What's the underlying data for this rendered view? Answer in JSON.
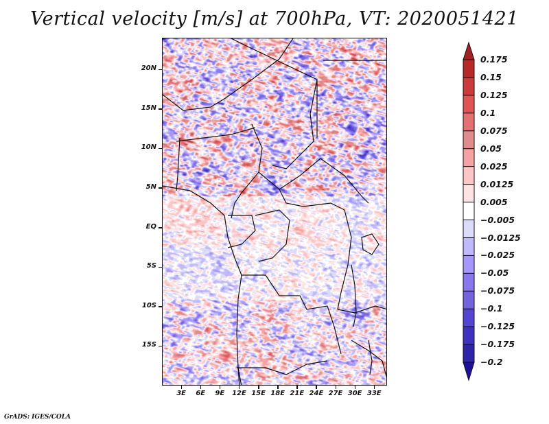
{
  "title": "Vertical velocity [m/s] at 700hPa, VT: 2020051421",
  "credit": "GrADS: IGES/COLA",
  "map": {
    "variable": "Vertical velocity",
    "units": "m/s",
    "level": "700hPa",
    "valid_time": "2020051421",
    "region": "Central Africa",
    "lon_range": [
      0,
      35
    ],
    "lat_range": [
      -20,
      24
    ],
    "y_axis_labels": [
      "20N",
      "15N",
      "10N",
      "5N",
      "EQ",
      "5S",
      "10S",
      "15S"
    ],
    "y_axis_values": [
      20,
      15,
      10,
      5,
      0,
      -5,
      -10,
      -15
    ],
    "x_axis_labels": [
      "3E",
      "6E",
      "9E",
      "12E",
      "15E",
      "18E",
      "21E",
      "24E",
      "27E",
      "30E",
      "33E"
    ],
    "x_axis_values": [
      3,
      6,
      9,
      12,
      15,
      18,
      21,
      24,
      27,
      30,
      33
    ]
  },
  "colorbar": {
    "labels": [
      "0.175",
      "0.15",
      "0.125",
      "0.1",
      "0.075",
      "0.05",
      "0.025",
      "0.0125",
      "0.005",
      "−0.005",
      "−0.0125",
      "−0.025",
      "−0.05",
      "−0.075",
      "−0.1",
      "−0.125",
      "−0.175",
      "−0.2"
    ],
    "colors": [
      "#a81f20",
      "#b82828",
      "#cc3a3c",
      "#e25355",
      "#e57071",
      "#e28b8d",
      "#f5a2a2",
      "#fcc6c6",
      "#fde4e4",
      "#ffffff",
      "#dcdcfa",
      "#c0b9fb",
      "#a597fb",
      "#8877ee",
      "#7363dd",
      "#5544d2",
      "#3f31bf",
      "#2e24a8",
      "#1f0fa0"
    ],
    "arrow_top_color": "#a81f20",
    "arrow_bottom_color": "#1f0fa0"
  }
}
